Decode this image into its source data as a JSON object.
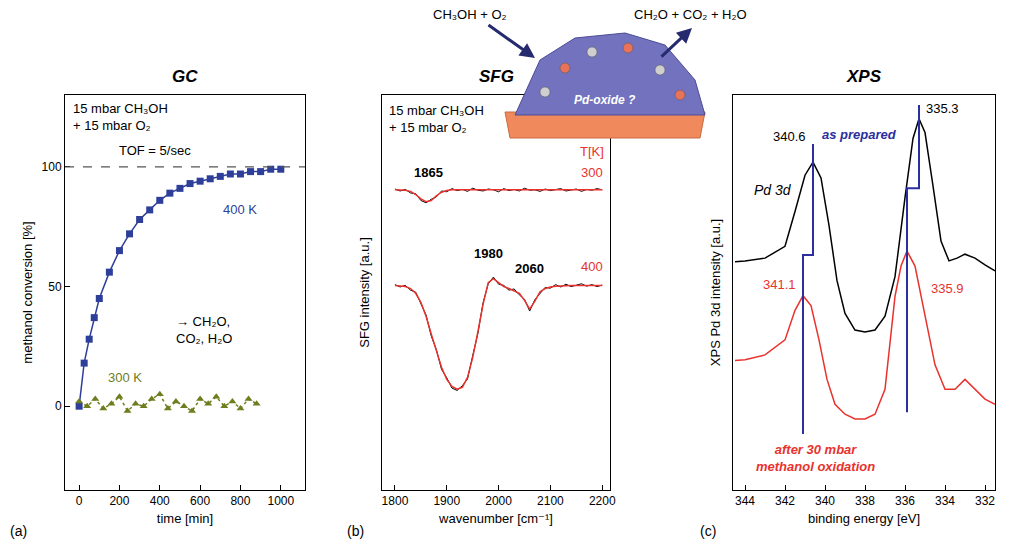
{
  "scheme": {
    "reactants": "CH₃OH + O₂",
    "products": "CH₂O + CO₂ + H₂O",
    "particle_label": "Pd-oxide ?"
  },
  "chart_data": [
    {
      "panel": "(a)",
      "type": "line",
      "title": "GC",
      "x_label": "time [min]",
      "y_label": "methanol conversion [%]",
      "xlim": [
        -70,
        1120
      ],
      "xticks": [
        0,
        200,
        400,
        600,
        800,
        1000
      ],
      "ylim": [
        -35,
        130
      ],
      "yticks": [
        0,
        50,
        100
      ],
      "grid": false,
      "conditions": "15 mbar CH₃OH + 15 mbar O₂",
      "reference_line": {
        "value": 100,
        "label": "TOF = 5/sec"
      },
      "annotations": [
        "→ CH₂O, CO₂, H₂O"
      ],
      "series": [
        {
          "name": "400 K",
          "color": "#2e3f9a",
          "marker": "square",
          "line_style": "solid",
          "x": [
            0,
            25,
            50,
            75,
            100,
            150,
            200,
            250,
            300,
            350,
            400,
            450,
            500,
            550,
            600,
            650,
            700,
            750,
            800,
            850,
            900,
            950,
            1000
          ],
          "values": [
            0,
            18,
            28,
            37,
            45,
            56,
            65,
            72,
            78,
            82,
            86,
            89,
            91,
            93,
            94,
            95,
            96,
            97,
            97,
            98,
            98,
            99,
            99
          ]
        },
        {
          "name": "300 K",
          "color": "#6f7d1e",
          "marker": "triangle-up",
          "line_style": "dot",
          "x": [
            0,
            40,
            80,
            120,
            160,
            200,
            240,
            280,
            320,
            360,
            400,
            440,
            480,
            520,
            560,
            600,
            640,
            680,
            720,
            760,
            800,
            840,
            880
          ],
          "values": [
            2,
            0,
            3,
            -1,
            1,
            4,
            -2,
            1,
            0,
            3,
            5,
            -1,
            2,
            0,
            -2,
            3,
            1,
            4,
            0,
            2,
            -1,
            3,
            1
          ]
        }
      ]
    },
    {
      "panel": "(b)",
      "type": "line",
      "title": "SFG",
      "x_label": "wavenumber [cm⁻¹]",
      "y_label": "SFG intensity [a.u.]",
      "xlim": [
        1775,
        2215
      ],
      "xticks": [
        1800,
        1900,
        2000,
        2100,
        2200
      ],
      "ylim": [
        0,
        10
      ],
      "tick_labels": "x",
      "grid": false,
      "conditions": "15 mbar CH₃OH + 15 mbar O₂",
      "series_title": "T[K]",
      "peaks": [
        1865,
        1980,
        2060
      ],
      "x": [
        1800,
        1810,
        1820,
        1830,
        1840,
        1850,
        1860,
        1870,
        1880,
        1890,
        1900,
        1910,
        1920,
        1930,
        1940,
        1950,
        1960,
        1970,
        1980,
        1990,
        2000,
        2010,
        2020,
        2030,
        2040,
        2050,
        2060,
        2070,
        2080,
        2090,
        2100,
        2110,
        2120,
        2130,
        2140,
        2150,
        2160,
        2170,
        2180,
        2190,
        2200
      ],
      "series": [
        {
          "color": "#000000",
          "values": [
            7.62,
            7.57,
            7.61,
            7.52,
            7.5,
            7.33,
            7.27,
            7.36,
            7.42,
            7.57,
            7.55,
            7.63,
            7.58,
            7.61,
            7.56,
            7.64,
            7.59,
            7.57,
            7.62,
            7.6,
            7.55,
            7.63,
            7.58,
            7.61,
            7.57,
            7.64,
            7.59,
            7.6,
            7.56,
            7.62,
            7.58,
            7.61,
            7.63,
            7.57,
            7.6,
            7.62,
            7.56,
            7.61,
            7.59,
            7.63,
            7.6
          ]
        },
        {
          "name": "300",
          "color": "#e8322d",
          "values": [
            7.6,
            7.6,
            7.59,
            7.56,
            7.48,
            7.37,
            7.3,
            7.33,
            7.45,
            7.54,
            7.58,
            7.6,
            7.6,
            7.6,
            7.6,
            7.6,
            7.6,
            7.6,
            7.6,
            7.6,
            7.6,
            7.6,
            7.6,
            7.6,
            7.6,
            7.6,
            7.6,
            7.6,
            7.6,
            7.6,
            7.6,
            7.6,
            7.6,
            7.6,
            7.6,
            7.6,
            7.6,
            7.6,
            7.6,
            7.6,
            7.6
          ]
        },
        {
          "color": "#000000",
          "values": [
            5.2,
            5.14,
            5.18,
            5.06,
            5.01,
            4.72,
            4.43,
            3.9,
            3.55,
            3.05,
            2.84,
            2.58,
            2.52,
            2.64,
            2.81,
            3.4,
            3.96,
            4.74,
            5.22,
            5.39,
            5.21,
            5.18,
            5.06,
            5.09,
            4.94,
            4.83,
            4.53,
            4.82,
            4.98,
            5.13,
            5.11,
            5.2,
            5.14,
            5.21,
            5.15,
            5.19,
            5.22,
            5.16,
            5.2,
            5.15,
            5.19
          ]
        },
        {
          "name": "400",
          "color": "#e8322d",
          "values": [
            5.18,
            5.17,
            5.15,
            5.1,
            4.98,
            4.75,
            4.4,
            3.95,
            3.5,
            3.1,
            2.8,
            2.62,
            2.55,
            2.6,
            2.85,
            3.35,
            4.0,
            4.7,
            5.25,
            5.35,
            5.25,
            5.15,
            5.1,
            5.05,
            4.98,
            4.8,
            4.58,
            4.78,
            5.02,
            5.1,
            5.14,
            5.16,
            5.17,
            5.18,
            5.18,
            5.18,
            5.18,
            5.18,
            5.18,
            5.18,
            5.18
          ]
        }
      ]
    },
    {
      "panel": "(c)",
      "type": "line",
      "title": "XPS",
      "x_label": "binding energy [eV]",
      "y_label": "XPS Pd 3d intensity [a.u.]",
      "xlim": [
        344.6,
        331.5
      ],
      "xticks": [
        344,
        342,
        340,
        338,
        336,
        334,
        332
      ],
      "ylim": [
        0,
        10
      ],
      "tick_labels": "x",
      "grid": false,
      "annotations": [
        "Pd 3d"
      ],
      "series": [
        {
          "name": "as prepared",
          "color": "#000000",
          "peaks": [
            340.6,
            335.3
          ],
          "x": [
            344.5,
            344,
            343,
            342,
            341.5,
            341,
            340.6,
            340.2,
            339.8,
            339.4,
            339,
            338.5,
            338,
            337.5,
            337,
            336.5,
            336,
            335.6,
            335.3,
            335,
            334.6,
            334.2,
            333.8,
            333.4,
            333,
            332.5,
            332,
            331.5
          ],
          "values": [
            5.78,
            5.8,
            5.87,
            6.17,
            7.05,
            7.97,
            8.3,
            7.9,
            6.7,
            5.3,
            4.47,
            4.05,
            4.0,
            4.05,
            4.4,
            5.4,
            7.4,
            8.9,
            9.4,
            9.05,
            7.7,
            6.3,
            5.8,
            5.87,
            5.97,
            5.87,
            5.7,
            5.55
          ]
        },
        {
          "name": "after 30 mbar methanol oxidation",
          "color": "#e8322d",
          "peaks": [
            341.1,
            335.9
          ],
          "x": [
            344.5,
            344,
            343,
            342,
            341.5,
            341.1,
            340.7,
            340.3,
            339.9,
            339.5,
            339,
            338.5,
            338,
            337.5,
            337,
            336.5,
            336.2,
            335.9,
            335.5,
            335,
            334.5,
            334,
            333.5,
            333,
            332.5,
            332,
            331.5
          ],
          "values": [
            3.28,
            3.3,
            3.42,
            3.8,
            4.55,
            4.92,
            4.67,
            3.8,
            2.8,
            2.17,
            1.92,
            1.8,
            1.8,
            1.92,
            2.55,
            4.9,
            5.67,
            6.05,
            5.67,
            4.42,
            3.17,
            2.55,
            2.55,
            2.8,
            2.55,
            2.3,
            2.17
          ]
        }
      ]
    }
  ]
}
